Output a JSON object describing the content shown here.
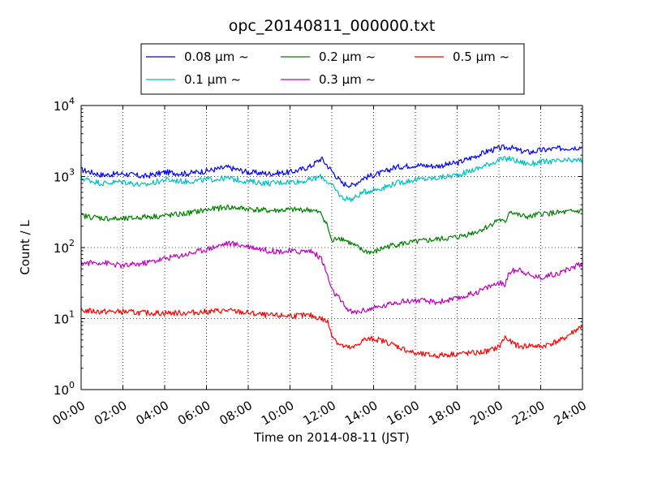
{
  "chart_data": {
    "type": "line",
    "title": "opc_20140811_000000.txt",
    "xlabel": "Time on 2014-08-11 (JST)",
    "ylabel": "Count / L",
    "y_scale": "log",
    "ylim": [
      1,
      10000
    ],
    "xlim": [
      0,
      24
    ],
    "x_unit": "hour (JST)",
    "grid": true,
    "legend_position": "top-center",
    "x_ticks": [
      {
        "value": 0,
        "label": "00:00"
      },
      {
        "value": 2,
        "label": "02:00"
      },
      {
        "value": 4,
        "label": "04:00"
      },
      {
        "value": 6,
        "label": "06:00"
      },
      {
        "value": 8,
        "label": "08:00"
      },
      {
        "value": 10,
        "label": "10:00"
      },
      {
        "value": 12,
        "label": "12:00"
      },
      {
        "value": 14,
        "label": "14:00"
      },
      {
        "value": 16,
        "label": "16:00"
      },
      {
        "value": 18,
        "label": "18:00"
      },
      {
        "value": 20,
        "label": "20:00"
      },
      {
        "value": 22,
        "label": "22:00"
      },
      {
        "value": 24,
        "label": "24:00"
      }
    ],
    "y_ticks": [
      {
        "value": 1,
        "base": "10",
        "exp": "0"
      },
      {
        "value": 10,
        "base": "10",
        "exp": "1"
      },
      {
        "value": 100,
        "base": "10",
        "exp": "2"
      },
      {
        "value": 1000,
        "base": "10",
        "exp": "3"
      },
      {
        "value": 10000,
        "base": "10",
        "exp": "4"
      }
    ],
    "series": [
      {
        "name": "0.08 μm ~",
        "color": "#0000ff",
        "x": [
          0,
          1,
          2,
          3,
          4,
          5,
          6,
          7,
          8,
          9,
          10,
          10.5,
          11,
          11.5,
          12,
          12.5,
          13,
          13.5,
          14,
          14.5,
          15,
          16,
          17,
          18,
          19,
          19.5,
          20,
          20.5,
          21,
          21.5,
          22,
          23,
          24
        ],
        "y": [
          1250,
          1050,
          1100,
          1000,
          1150,
          1100,
          1200,
          1350,
          1150,
          1100,
          1150,
          1250,
          1400,
          1800,
          1200,
          800,
          750,
          950,
          1050,
          1150,
          1350,
          1450,
          1400,
          1550,
          2000,
          2300,
          2500,
          2600,
          2300,
          2200,
          2350,
          2500,
          2600
        ]
      },
      {
        "name": "0.1 μm ~",
        "color": "#00bfbf",
        "x": [
          0,
          1,
          2,
          3,
          4,
          5,
          6,
          7,
          8,
          9,
          10,
          10.5,
          11,
          11.5,
          12,
          12.5,
          13,
          13.5,
          14,
          14.5,
          15,
          16,
          17,
          18,
          19,
          19.5,
          20,
          20.5,
          21,
          21.5,
          22,
          23,
          24
        ],
        "y": [
          950,
          800,
          850,
          750,
          900,
          850,
          900,
          950,
          850,
          800,
          850,
          850,
          900,
          1000,
          750,
          500,
          480,
          600,
          650,
          700,
          800,
          900,
          950,
          1050,
          1300,
          1500,
          1700,
          1800,
          1600,
          1500,
          1600,
          1650,
          1700
        ]
      },
      {
        "name": "0.2 μm ~",
        "color": "#008000",
        "x": [
          0,
          1,
          2,
          3,
          4,
          5,
          6,
          7,
          8,
          9,
          10,
          10.5,
          11,
          11.5,
          11.8,
          12,
          12.3,
          12.6,
          13,
          13.5,
          14,
          14.5,
          15,
          16,
          17,
          18,
          19,
          19.5,
          20,
          20.3,
          20.5,
          21,
          21.5,
          22,
          23,
          24
        ],
        "y": [
          280,
          260,
          250,
          270,
          280,
          300,
          340,
          370,
          350,
          330,
          340,
          340,
          340,
          300,
          200,
          120,
          140,
          130,
          110,
          90,
          85,
          100,
          110,
          120,
          130,
          140,
          170,
          200,
          250,
          220,
          330,
          280,
          270,
          300,
          310,
          330
        ]
      },
      {
        "name": "0.3 μm ~",
        "color": "#bf00bf",
        "x": [
          0,
          1,
          2,
          3,
          4,
          5,
          6,
          7,
          8,
          9,
          10,
          10.5,
          11,
          11.5,
          11.8,
          12,
          12.3,
          12.6,
          13,
          13.5,
          14,
          14.5,
          15,
          16,
          17,
          18,
          19,
          19.5,
          20,
          20.3,
          20.5,
          21,
          21.5,
          22,
          23,
          24
        ],
        "y": [
          60,
          62,
          55,
          60,
          70,
          80,
          95,
          115,
          105,
          90,
          88,
          88,
          90,
          70,
          40,
          25,
          20,
          15,
          12,
          13,
          14,
          15,
          17,
          18,
          17,
          19,
          24,
          28,
          32,
          30,
          45,
          50,
          40,
          38,
          45,
          60
        ]
      },
      {
        "name": "0.5 μm ~",
        "color": "#ff0000",
        "x": [
          0,
          1,
          2,
          3,
          4,
          5,
          6,
          7,
          8,
          9,
          10,
          10.5,
          11,
          11.5,
          11.8,
          12,
          12.3,
          12.6,
          13,
          13.5,
          14,
          14.5,
          15,
          16,
          17,
          18,
          19,
          19.5,
          20,
          20.3,
          20.5,
          21,
          21.5,
          22,
          23,
          24
        ],
        "y": [
          13,
          12.5,
          12.5,
          12,
          12,
          12,
          12.5,
          13,
          12,
          11,
          11,
          11,
          11,
          10,
          9,
          6,
          4.5,
          4,
          3.8,
          5,
          5.2,
          4.8,
          4.2,
          3.2,
          3,
          3.2,
          3.3,
          3.5,
          4,
          5.5,
          4.8,
          4,
          4.2,
          4,
          5,
          8
        ]
      }
    ]
  }
}
